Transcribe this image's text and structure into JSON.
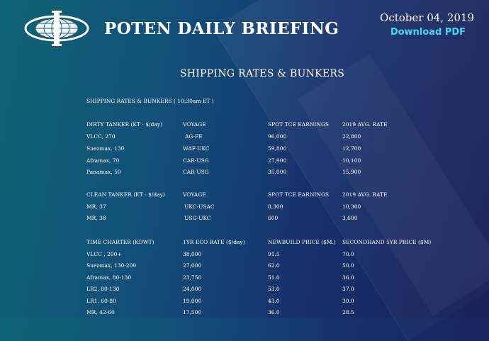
{
  "header": {
    "brand": "POTEN DAILY BRIEFING",
    "date": "October 04, 2019",
    "download_label": "Download PDF",
    "logo_icon": "poten-globe-logo-icon"
  },
  "page": {
    "heading": "SHIPPING RATES & BUNKERS",
    "subheading": "SHIPPING RATES & BUNKERS ( 10:30am ET )"
  },
  "sections": [
    {
      "headers": [
        "DIRTY TANKER (KT - $/day)",
        "VOYAGE",
        "SPOT TCE EARNINGS",
        "2019 AVG. RATE"
      ],
      "rows": [
        [
          "VLCC, 270",
          "AG-FE",
          "96,000",
          "22,800"
        ],
        [
          "Suezmax, 130",
          "WAF-UKC",
          "59,800",
          "12,700"
        ],
        [
          "Aframax, 70",
          "CAR-USG",
          "27,900",
          "10,100"
        ],
        [
          "Panamax, 50",
          "CAR-USG",
          "35,000",
          "15,900"
        ]
      ]
    },
    {
      "headers": [
        "CLEAN TANKER (KT - $/day)",
        "VOYAGE",
        "SPOT TCE EARNINGS",
        "2019 AVG. RATE"
      ],
      "rows": [
        [
          "MR, 37",
          "UKC-USAC",
          "8,300",
          "10,300"
        ],
        [
          "MR, 38",
          "USG-UKC",
          "600",
          "3,600"
        ]
      ]
    },
    {
      "headers": [
        "TIME CHARTER (KDWT)",
        "1YR ECO RATE ($/day)",
        "NEWBUILD PRICE ($M.)",
        "SECONDHAND 5YR PRICE ($M)"
      ],
      "rows": [
        [
          "VLCC , 200+",
          "38,000",
          "91.5",
          "70.0"
        ],
        [
          "Suezmax, 130-200",
          "27,000",
          "62.0",
          "50.0"
        ],
        [
          "Aframax, 80-130",
          "23,750",
          "51.0",
          "36.0"
        ],
        [
          "LR2, 80-130",
          "24,000",
          "53.0",
          "37.0"
        ],
        [
          "LR1, 60-80",
          "19,000",
          "43.0",
          "30.0"
        ],
        [
          "MR, 42-60",
          "17,500",
          "36.0",
          "28.5"
        ]
      ]
    }
  ],
  "colors": {
    "accent": "#46d6ef",
    "bg_start": "#0f6474",
    "bg_end": "#1a2158"
  }
}
